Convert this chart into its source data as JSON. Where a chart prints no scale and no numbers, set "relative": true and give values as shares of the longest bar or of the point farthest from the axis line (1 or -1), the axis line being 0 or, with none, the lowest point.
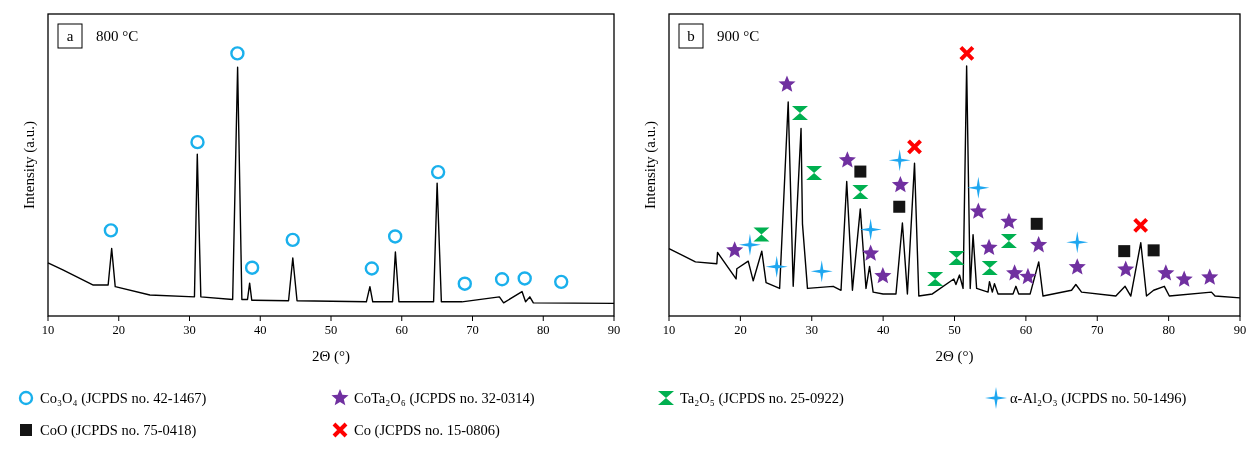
{
  "chart_data": [
    {
      "type": "line",
      "title": "800 °C",
      "annotations": [
        "a"
      ],
      "xlabel": "2Θ (°)",
      "ylabel": "Intensity (a.u.)",
      "relative": true,
      "xlim": [
        10,
        90
      ],
      "xticks": [
        10,
        20,
        30,
        40,
        50,
        60,
        70,
        80,
        90
      ],
      "tick_labels": "x",
      "legend": "bottom",
      "series": [
        {
          "color": "#000000",
          "x": [
            10,
            12.1,
            16.4,
            18.5,
            19.0,
            19.5,
            24.4,
            30.7,
            31.1,
            31.6,
            36.1,
            36.8,
            37.4,
            38.2,
            38.5,
            38.8,
            44.0,
            44.6,
            45.2,
            55.0,
            55.5,
            55.9,
            58.7,
            59.1,
            59.6,
            64.5,
            65.0,
            65.6,
            68.5,
            73.8,
            74.4,
            77.0,
            77.5,
            78.1,
            78.6,
            90
          ],
          "values": [
            0.202,
            0.176,
            0.118,
            0.118,
            0.257,
            0.112,
            0.08,
            0.073,
            0.616,
            0.073,
            0.063,
            0.947,
            0.063,
            0.063,
            0.125,
            0.06,
            0.058,
            0.221,
            0.058,
            0.054,
            0.112,
            0.054,
            0.054,
            0.244,
            0.054,
            0.054,
            0.506,
            0.054,
            0.054,
            0.073,
            0.05,
            0.093,
            0.054,
            0.073,
            0.05,
            0.048
          ]
        },
        {
          "type": "scatter",
          "name": "Co₃O₄  (JCPDS no. 42-1467)",
          "color": "#1ab0ec",
          "marker": "circle",
          "x": [
            18.89,
            31.13,
            36.77,
            38.85,
            44.59,
            55.77,
            59.07,
            65.14,
            68.91,
            74.18,
            77.38,
            82.54
          ],
          "values": [
            0.326,
            0.662,
            1.0,
            0.184,
            0.29,
            0.181,
            0.303,
            0.548,
            0.123,
            0.14,
            0.143,
            0.13
          ]
        }
      ]
    },
    {
      "type": "line",
      "title": "900 °C",
      "annotations": [
        "b"
      ],
      "xlabel": "2Θ (°)",
      "ylabel": "Intensity (a.u.)",
      "relative": true,
      "xlim": [
        10,
        90
      ],
      "xticks": [
        10,
        20,
        30,
        40,
        50,
        60,
        70,
        80,
        90
      ],
      "tick_labels": "x",
      "legend": "bottom",
      "series": [
        {
          "color": "#000000",
          "x": [
            10,
            13.7,
            16.7,
            16.8,
            19.4,
            19.5,
            21.1,
            21.8,
            23.0,
            23.6,
            25.5,
            26.7,
            27.4,
            28.5,
            28.7,
            29.4,
            33.0,
            34.1,
            34.9,
            35.7,
            36.8,
            37.6,
            38.1,
            38.6,
            40.0,
            41.8,
            42.7,
            43.4,
            44.4,
            45.0,
            46.9,
            49.9,
            50.2,
            50.7,
            51.2,
            51.7,
            52.2,
            52.6,
            53.1,
            54.7,
            54.9,
            55.3,
            55.6,
            56.1,
            58.2,
            58.6,
            59.0,
            60.6,
            61.8,
            62.4,
            66.4,
            67.0,
            67.8,
            72.6,
            73.9,
            74.7,
            76.1,
            76.9,
            77.9,
            79.4,
            80.1,
            86.0,
            86.5,
            90
          ],
          "values": [
            0.257,
            0.206,
            0.199,
            0.242,
            0.141,
            0.18,
            0.209,
            0.134,
            0.247,
            0.127,
            0.105,
            0.815,
            0.113,
            0.714,
            0.351,
            0.105,
            0.113,
            0.098,
            0.512,
            0.098,
            0.408,
            0.105,
            0.189,
            0.091,
            0.084,
            0.084,
            0.354,
            0.084,
            0.582,
            0.076,
            0.084,
            0.141,
            0.12,
            0.156,
            0.105,
            0.952,
            0.105,
            0.31,
            0.105,
            0.091,
            0.131,
            0.091,
            0.123,
            0.084,
            0.084,
            0.113,
            0.084,
            0.084,
            0.206,
            0.076,
            0.098,
            0.12,
            0.091,
            0.076,
            0.113,
            0.076,
            0.279,
            0.076,
            0.098,
            0.113,
            0.076,
            0.091,
            0.076,
            0.069
          ]
        },
        {
          "type": "scatter",
          "name": "CoTa₂O₆  (JCPDS no. 32-0314)",
          "color": "#7030a0",
          "marker": "star",
          "x": [
            19.2,
            26.53,
            34.99,
            38.25,
            39.96,
            42.42,
            53.34,
            54.84,
            57.62,
            58.42,
            60.29,
            61.79,
            67.2,
            73.99,
            79.61,
            82.18,
            85.76
          ],
          "values": [
            0.25,
            0.882,
            0.593,
            0.238,
            0.152,
            0.499,
            0.398,
            0.26,
            0.359,
            0.163,
            0.149,
            0.27,
            0.186,
            0.177,
            0.163,
            0.139,
            0.147
          ]
        },
        {
          "type": "scatter",
          "name": "Ta₂O₅  (JCPDS no. 25-0922)",
          "color": "#00b050",
          "marker": "triangle",
          "x": [
            22.95,
            28.35,
            30.33,
            36.81,
            47.29,
            50.29,
            54.94,
            57.62
          ],
          "values": [
            0.31,
            0.773,
            0.545,
            0.472,
            0.141,
            0.221,
            0.183,
            0.286
          ]
        },
        {
          "type": "scatter",
          "name": "α-Al₂O₃  (JCPDS no. 50-1496)",
          "color": "#1ea7f0",
          "marker": "diamond",
          "x": [
            21.34,
            25.09,
            31.4,
            38.25,
            42.32,
            53.34,
            67.2
          ],
          "values": [
            0.271,
            0.188,
            0.17,
            0.329,
            0.593,
            0.488,
            0.281
          ]
        },
        {
          "type": "scatter",
          "name": "CoO  (JCPDS no. 75-0418)",
          "color": "#141414",
          "marker": "square",
          "x": [
            36.81,
            42.26,
            61.52,
            73.78,
            77.9
          ],
          "values": [
            0.55,
            0.416,
            0.351,
            0.247,
            0.25
          ]
        },
        {
          "type": "scatter",
          "name": "Co (JCPDS no. 15-0806)",
          "color": "#ff0000",
          "marker": "cross",
          "x": [
            51.73,
            44.4,
            76.08
          ],
          "values": [
            1.0,
            0.644,
            0.345
          ]
        }
      ]
    }
  ]
}
